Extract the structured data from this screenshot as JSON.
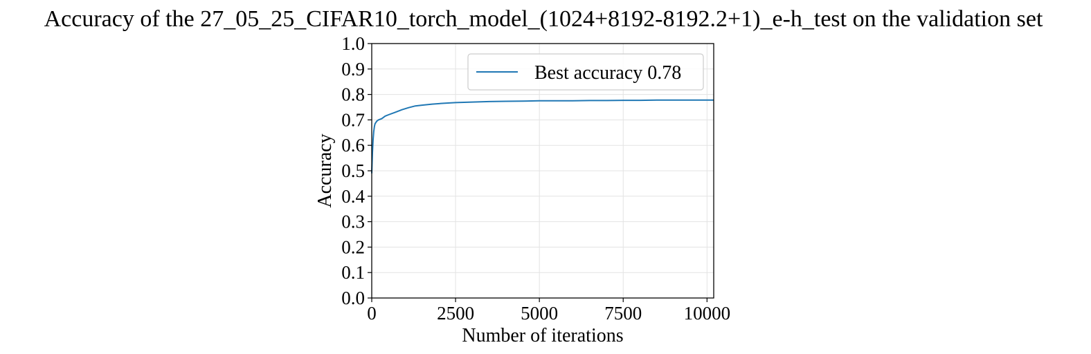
{
  "chart_data": {
    "type": "line",
    "title": "Accuracy of the 27_05_25_CIFAR10_torch_model_(1024+8192-8192.2+1)_e-h_test on the validation set",
    "xlabel": "Number of iterations",
    "ylabel": "Accuracy",
    "xlim": [
      0,
      10200
    ],
    "ylim": [
      0.0,
      1.0
    ],
    "xticks": [
      0,
      2500,
      5000,
      7500,
      10000
    ],
    "xtick_labels": [
      "0",
      "2500",
      "5000",
      "7500",
      "10000"
    ],
    "yticks": [
      0.0,
      0.1,
      0.2,
      0.3,
      0.4,
      0.5,
      0.6,
      0.7,
      0.8,
      0.9,
      1.0
    ],
    "ytick_labels": [
      "0.0",
      "0.1",
      "0.2",
      "0.3",
      "0.4",
      "0.5",
      "0.6",
      "0.7",
      "0.8",
      "0.9",
      "1.0"
    ],
    "grid": true,
    "legend_position": "top-right",
    "series": [
      {
        "name": "Best accuracy 0.78",
        "color": "#1f77b4",
        "x": [
          0,
          20,
          40,
          60,
          80,
          100,
          150,
          200,
          300,
          400,
          500,
          700,
          900,
          1100,
          1300,
          1500,
          1800,
          2100,
          2500,
          3000,
          3500,
          4000,
          4500,
          5000,
          5500,
          6000,
          6500,
          7000,
          7500,
          8000,
          8500,
          9000,
          9500,
          10200
        ],
        "y": [
          0.49,
          0.57,
          0.62,
          0.655,
          0.675,
          0.685,
          0.695,
          0.7,
          0.705,
          0.715,
          0.72,
          0.73,
          0.74,
          0.748,
          0.755,
          0.758,
          0.762,
          0.765,
          0.768,
          0.77,
          0.772,
          0.773,
          0.774,
          0.775,
          0.775,
          0.775,
          0.776,
          0.776,
          0.777,
          0.777,
          0.778,
          0.778,
          0.778,
          0.778
        ]
      }
    ]
  }
}
